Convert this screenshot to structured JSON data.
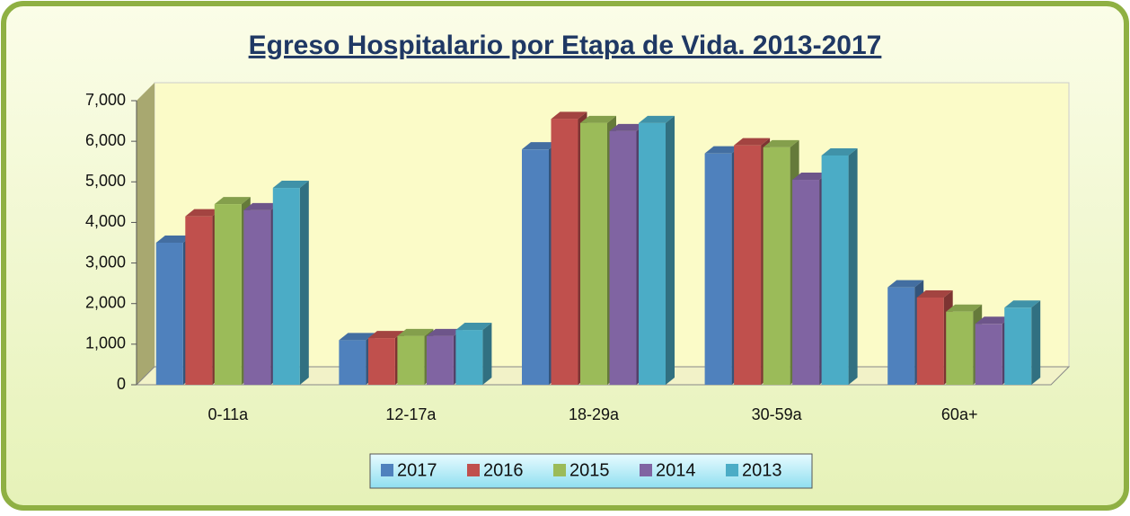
{
  "chart_data": {
    "type": "bar",
    "title": "Egreso Hospitalario por Etapa de Vida. 2013-2017",
    "categories": [
      "0-11a",
      "12-17a",
      "18-29a",
      "30-59a",
      "60a+"
    ],
    "series": [
      {
        "name": "2017",
        "color": "#4f81bd",
        "values": [
          3500,
          1100,
          5800,
          5700,
          2400
        ]
      },
      {
        "name": "2016",
        "color": "#c0504d",
        "values": [
          4150,
          1150,
          6550,
          5900,
          2150
        ]
      },
      {
        "name": "2015",
        "color": "#9bbb59",
        "values": [
          4450,
          1200,
          6450,
          5850,
          1800
        ]
      },
      {
        "name": "2014",
        "color": "#8064a2",
        "values": [
          4300,
          1200,
          6250,
          5050,
          1500
        ]
      },
      {
        "name": "2013",
        "color": "#4bacc6",
        "values": [
          4850,
          1350,
          6450,
          5650,
          1900
        ]
      }
    ],
    "ylim": [
      0,
      7000
    ],
    "yticks": [
      0,
      {
        "value": 1000,
        "label": "1,000"
      },
      {
        "value": 2000,
        "label": "2,000"
      },
      {
        "value": 3000,
        "label": "3,000"
      },
      {
        "value": 4000,
        "label": "4,000"
      },
      {
        "value": 5000,
        "label": "5,000"
      },
      {
        "value": 6000,
        "label": "6,000"
      },
      {
        "value": 7000,
        "label": "7,000"
      }
    ],
    "grid": false,
    "legend": "bottom"
  }
}
